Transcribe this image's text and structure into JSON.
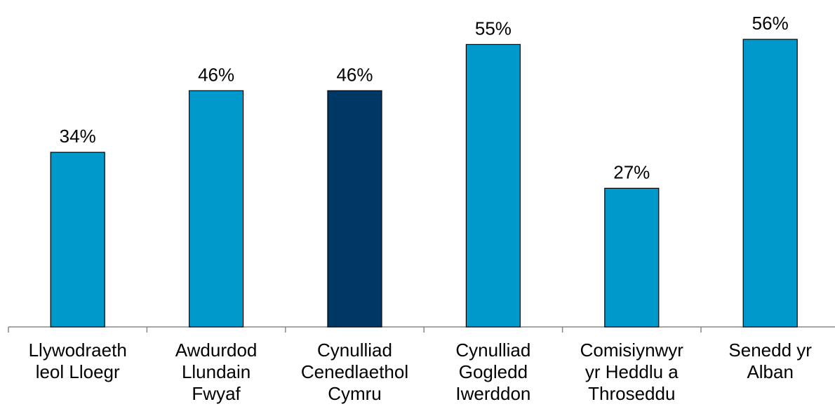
{
  "chart_data": {
    "type": "bar",
    "categories": [
      "Llywodraeth leol Lloegr",
      "Awdurdod Llundain Fwyaf",
      "Cynulliad Cenedlaethol Cymru",
      "Cynulliad Gogledd Iwerddon",
      "Comisiynwyr yr Heddlu a Throseddu",
      "Senedd yr Alban"
    ],
    "values": [
      34,
      46,
      46,
      55,
      27,
      56
    ],
    "value_labels": [
      "34%",
      "46%",
      "46%",
      "55%",
      "27%",
      "56%"
    ],
    "colors": [
      "#0099cc",
      "#0099cc",
      "#003865",
      "#0099cc",
      "#0099cc",
      "#0099cc"
    ]
  }
}
